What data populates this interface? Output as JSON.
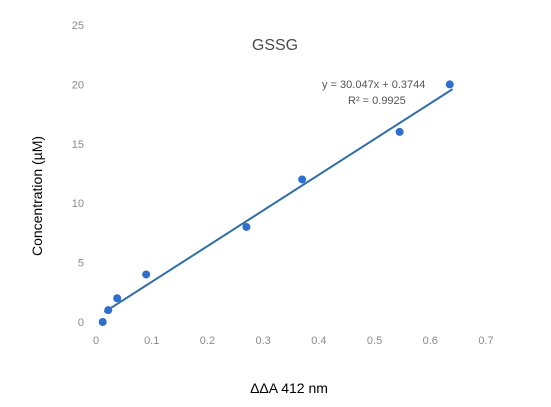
{
  "chart_data": {
    "type": "scatter",
    "title": "GSSG",
    "xlabel": "ΔΔA 412 nm",
    "ylabel": "Concentration (µM)",
    "xlim": [
      0,
      0.7
    ],
    "ylim": [
      0,
      25
    ],
    "x_ticks": [
      "0",
      "0.1",
      "0.2",
      "0.3",
      "0.4",
      "0.5",
      "0.6",
      "0.7"
    ],
    "y_ticks": [
      "0",
      "5",
      "10",
      "15",
      "20",
      "25"
    ],
    "grid": false,
    "legend": "none",
    "series": [
      {
        "x": [
          0.012,
          0.022,
          0.038,
          0.09,
          0.27,
          0.37,
          0.545,
          0.635
        ],
        "y": [
          0,
          1,
          2,
          4,
          8,
          12,
          16,
          20
        ]
      }
    ],
    "trendline": {
      "slope": 30.047,
      "intercept": 0.3744,
      "x_range": [
        0.015,
        0.64
      ]
    },
    "annotations": {
      "equation": "y = 30.047x + 0.3744",
      "r_squared": "R² = 0.9925"
    },
    "colors": {
      "points": "#2e6fce",
      "trendline": "#2f6ea8"
    }
  }
}
